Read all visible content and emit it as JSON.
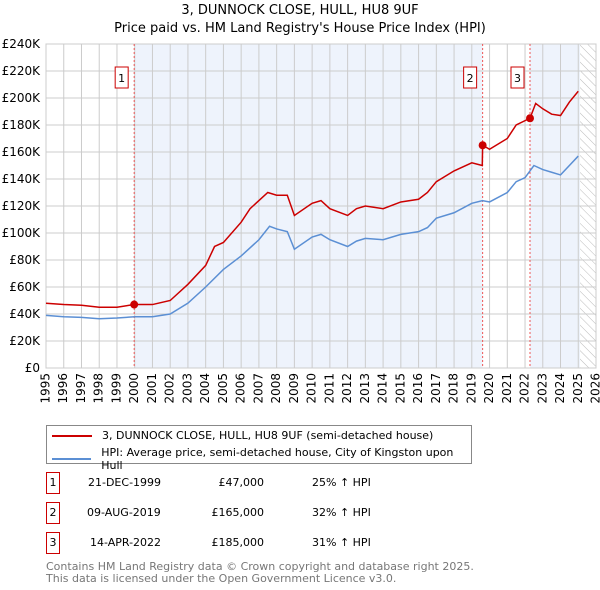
{
  "chart_data": {
    "type": "line",
    "title": "3, DUNNOCK CLOSE, HULL, HU8 9UF",
    "subtitle": "Price paid vs. HM Land Registry's House Price Index (HPI)",
    "xlim": [
      1995,
      2026
    ],
    "ylim": [
      0,
      240000
    ],
    "y_ticks": [
      "£0",
      "£20K",
      "£40K",
      "£60K",
      "£80K",
      "£100K",
      "£120K",
      "£140K",
      "£160K",
      "£180K",
      "£200K",
      "£220K",
      "£240K"
    ],
    "x_ticks": [
      "1995",
      "1996",
      "1997",
      "1998",
      "1999",
      "2000",
      "2001",
      "2002",
      "2003",
      "2004",
      "2005",
      "2006",
      "2007",
      "2008",
      "2009",
      "2010",
      "2011",
      "2012",
      "2013",
      "2014",
      "2015",
      "2016",
      "2017",
      "2018",
      "2019",
      "2020",
      "2021",
      "2022",
      "2023",
      "2024",
      "2025",
      "2026"
    ],
    "grid": true,
    "series": [
      {
        "name": "3, DUNNOCK CLOSE, HULL, HU8 9UF (semi-detached house)",
        "color": "#cc0000",
        "x": [
          1995,
          1996,
          1997,
          1998,
          1999,
          1999.97,
          2001,
          2002,
          2003,
          2004,
          2004.5,
          2005,
          2006,
          2006.5,
          2007.5,
          2008,
          2008.6,
          2009,
          2010,
          2010.5,
          2011,
          2012,
          2012.5,
          2013,
          2014,
          2015,
          2016,
          2016.5,
          2017,
          2018,
          2019,
          2019.59,
          2019.61,
          2020,
          2021,
          2021.5,
          2022.28,
          2022.6,
          2023,
          2023.5,
          2024,
          2024.5,
          2025
        ],
        "y": [
          48000,
          47000,
          46500,
          45000,
          45000,
          47000,
          47000,
          50000,
          62000,
          76000,
          90000,
          93000,
          108000,
          118000,
          130000,
          128000,
          128000,
          113000,
          122000,
          124000,
          118000,
          113000,
          118000,
          120000,
          118000,
          123000,
          125000,
          130000,
          138000,
          146000,
          152000,
          150000,
          165000,
          162000,
          170000,
          180000,
          185000,
          196000,
          192000,
          188000,
          187000,
          197000,
          205000
        ]
      },
      {
        "name": "HPI: Average price, semi-detached house, City of Kingston upon Hull",
        "color": "#5b8fd4",
        "x": [
          1995,
          1996,
          1997,
          1998,
          1999,
          2000,
          2001,
          2002,
          2003,
          2004,
          2005,
          2006,
          2007,
          2007.6,
          2008,
          2008.6,
          2009,
          2010,
          2010.5,
          2011,
          2012,
          2012.5,
          2013,
          2014,
          2015,
          2016,
          2016.5,
          2017,
          2018,
          2019,
          2019.6,
          2020,
          2021,
          2021.5,
          2022,
          2022.5,
          2023,
          2023.5,
          2024,
          2024.5,
          2025
        ],
        "y": [
          39000,
          38000,
          37500,
          36500,
          37000,
          38000,
          38000,
          40000,
          48000,
          60000,
          73000,
          83000,
          95000,
          105000,
          103000,
          101000,
          88000,
          97000,
          99000,
          95000,
          90000,
          94000,
          96000,
          95000,
          99000,
          101000,
          104000,
          111000,
          115000,
          122000,
          124000,
          123000,
          130000,
          138000,
          141000,
          150000,
          147000,
          145000,
          143000,
          150000,
          157000
        ]
      }
    ],
    "sales": [
      {
        "label": "1",
        "x": 1999.97,
        "date": "21-DEC-1999",
        "price": "£47,000",
        "value": 47000,
        "hpi": "25% ↑ HPI"
      },
      {
        "label": "2",
        "x": 2019.61,
        "date": "09-AUG-2019",
        "price": "£165,000",
        "value": 165000,
        "hpi": "32% ↑ HPI"
      },
      {
        "label": "3",
        "x": 2022.28,
        "date": "14-APR-2022",
        "price": "£185,000",
        "value": 185000,
        "hpi": "31% ↑ HPI"
      }
    ],
    "shaded_ranges": [
      [
        1999.97,
        2019.61
      ],
      [
        2022.28,
        2025.1
      ]
    ],
    "forecast_hatch_from": 2025.1,
    "footer": [
      "Contains HM Land Registry data © Crown copyright and database right 2025.",
      "This data is licensed under the Open Government Licence v3.0."
    ]
  }
}
